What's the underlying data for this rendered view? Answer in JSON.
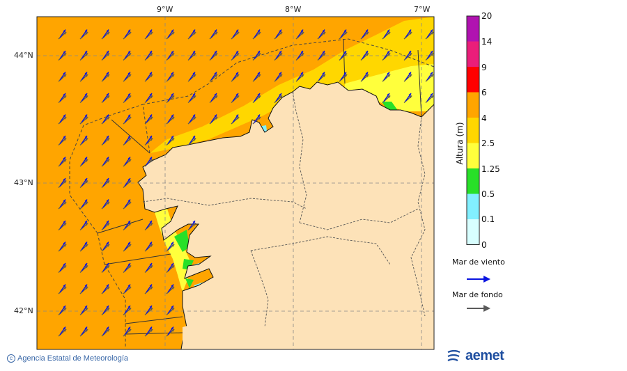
{
  "map": {
    "lon_labels": [
      "9°W",
      "8°W",
      "7°W"
    ],
    "lat_labels": [
      "44°N",
      "43°N",
      "42°N"
    ]
  },
  "colorbar": {
    "title": "Altura (m)",
    "ticks": [
      "20",
      "14",
      "9",
      "6",
      "4",
      "2.5",
      "1.25",
      "0.5",
      "0.1",
      "0"
    ],
    "colors": [
      "#b012b0",
      "#ea1e7a",
      "#ff0000",
      "#ffa500",
      "#ffd700",
      "#ffff3c",
      "#28e028",
      "#82f0ff",
      "#d8ffff"
    ]
  },
  "legend": {
    "wind_sea_label": "Mar de viento",
    "wind_sea_color": "#0a14e0",
    "swell_label": "Mar de fondo",
    "swell_color": "#5a5a5a"
  },
  "colors": {
    "sea_4_6": "#ffa500",
    "sea_2_5_4": "#ffd700",
    "sea_1_25_2_5": "#ffff3c",
    "sea_0_5_1_25": "#28e028",
    "sea_0_1_0_5": "#82f0ff",
    "land": "#fde2b8"
  },
  "footer": {
    "credit": "Agencia Estatal de Meteorología",
    "logo_text": "aemet"
  }
}
